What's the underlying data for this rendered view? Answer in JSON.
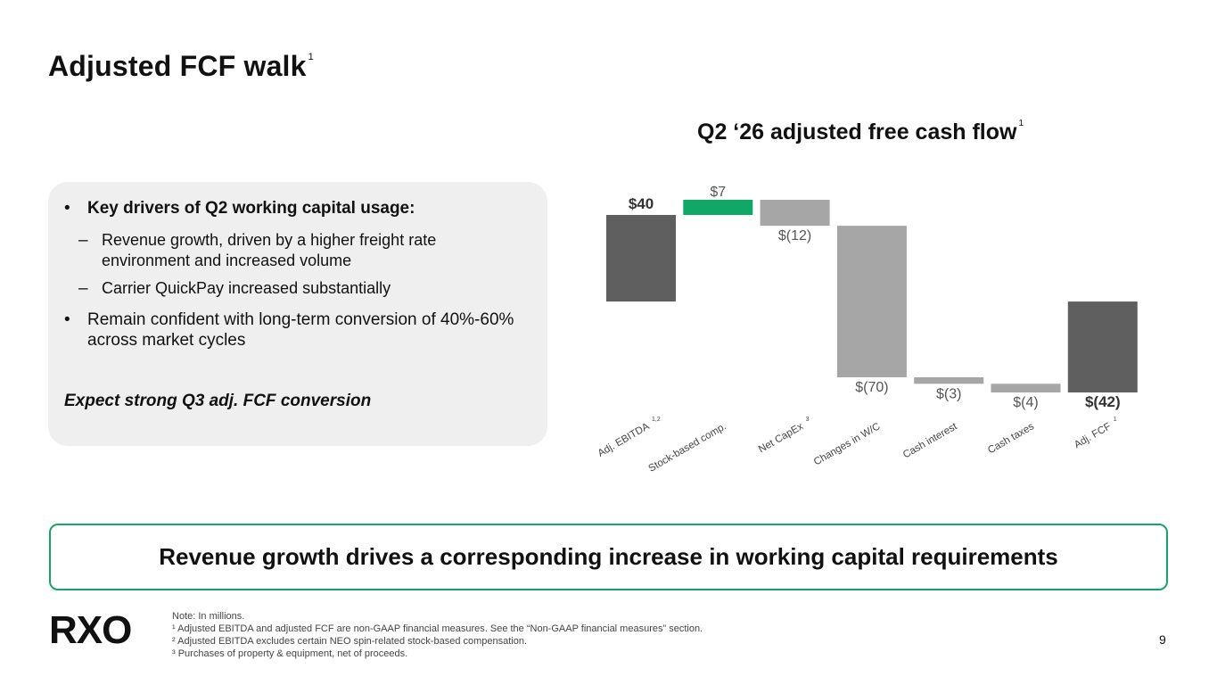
{
  "slide": {
    "title": "Adjusted FCF walk",
    "title_footnote": "1",
    "page_number": "9"
  },
  "drivers": {
    "heading": "Key drivers of Q2 working capital usage:",
    "sub_items": [
      "Revenue growth, driven by a higher freight rate environment and increased volume",
      "Carrier QuickPay increased substantially"
    ],
    "second_bullet": "Remain confident with long-term conversion of 40%-60% across market cycles",
    "conclusion": "Expect strong Q3 adj. FCF conversion"
  },
  "callout": {
    "text": "Revenue growth drives a corresponding increase in working capital requirements"
  },
  "logo": {
    "text": "RXO"
  },
  "notes": [
    "Note: In millions.",
    "¹ Adjusted EBITDA and adjusted FCF are non-GAAP financial measures. See the “Non-GAAP financial measures” section.",
    "² Adjusted EBITDA excludes certain NEO spin-related stock-based compensation.",
    "³ Purchases of property & equipment, net of proceeds."
  ],
  "chart_data": {
    "type": "bar",
    "subtype": "waterfall",
    "title": "Q2 ‘26 adjusted free cash flow",
    "title_footnote": "1",
    "categories": [
      "Adj. EBITDA",
      "Stock-based comp.",
      "Net CapEx",
      "Changes in W/C",
      "Cash interest",
      "Cash taxes",
      "Adj. FCF"
    ],
    "category_footnotes": [
      "1,2",
      "",
      "3",
      "",
      "",
      "",
      "1"
    ],
    "values": [
      40,
      7,
      -12,
      -70,
      -3,
      -4,
      -42
    ],
    "value_labels": [
      "$40",
      "$7",
      "$(12)",
      "$(70)",
      "$(3)",
      "$(4)",
      "$(42)"
    ],
    "bar_kinds": [
      "total",
      "increase",
      "decrease",
      "decrease",
      "decrease",
      "decrease",
      "total"
    ],
    "bold_labels": [
      true,
      false,
      false,
      false,
      false,
      false,
      true
    ],
    "ylim": [
      -42,
      47
    ],
    "colors": {
      "total": "#5f5f5f",
      "increase": "#10a867",
      "decrease": "#a6a6a6"
    }
  },
  "colors": {
    "accent": "#17a565",
    "panel": "#efefef"
  }
}
